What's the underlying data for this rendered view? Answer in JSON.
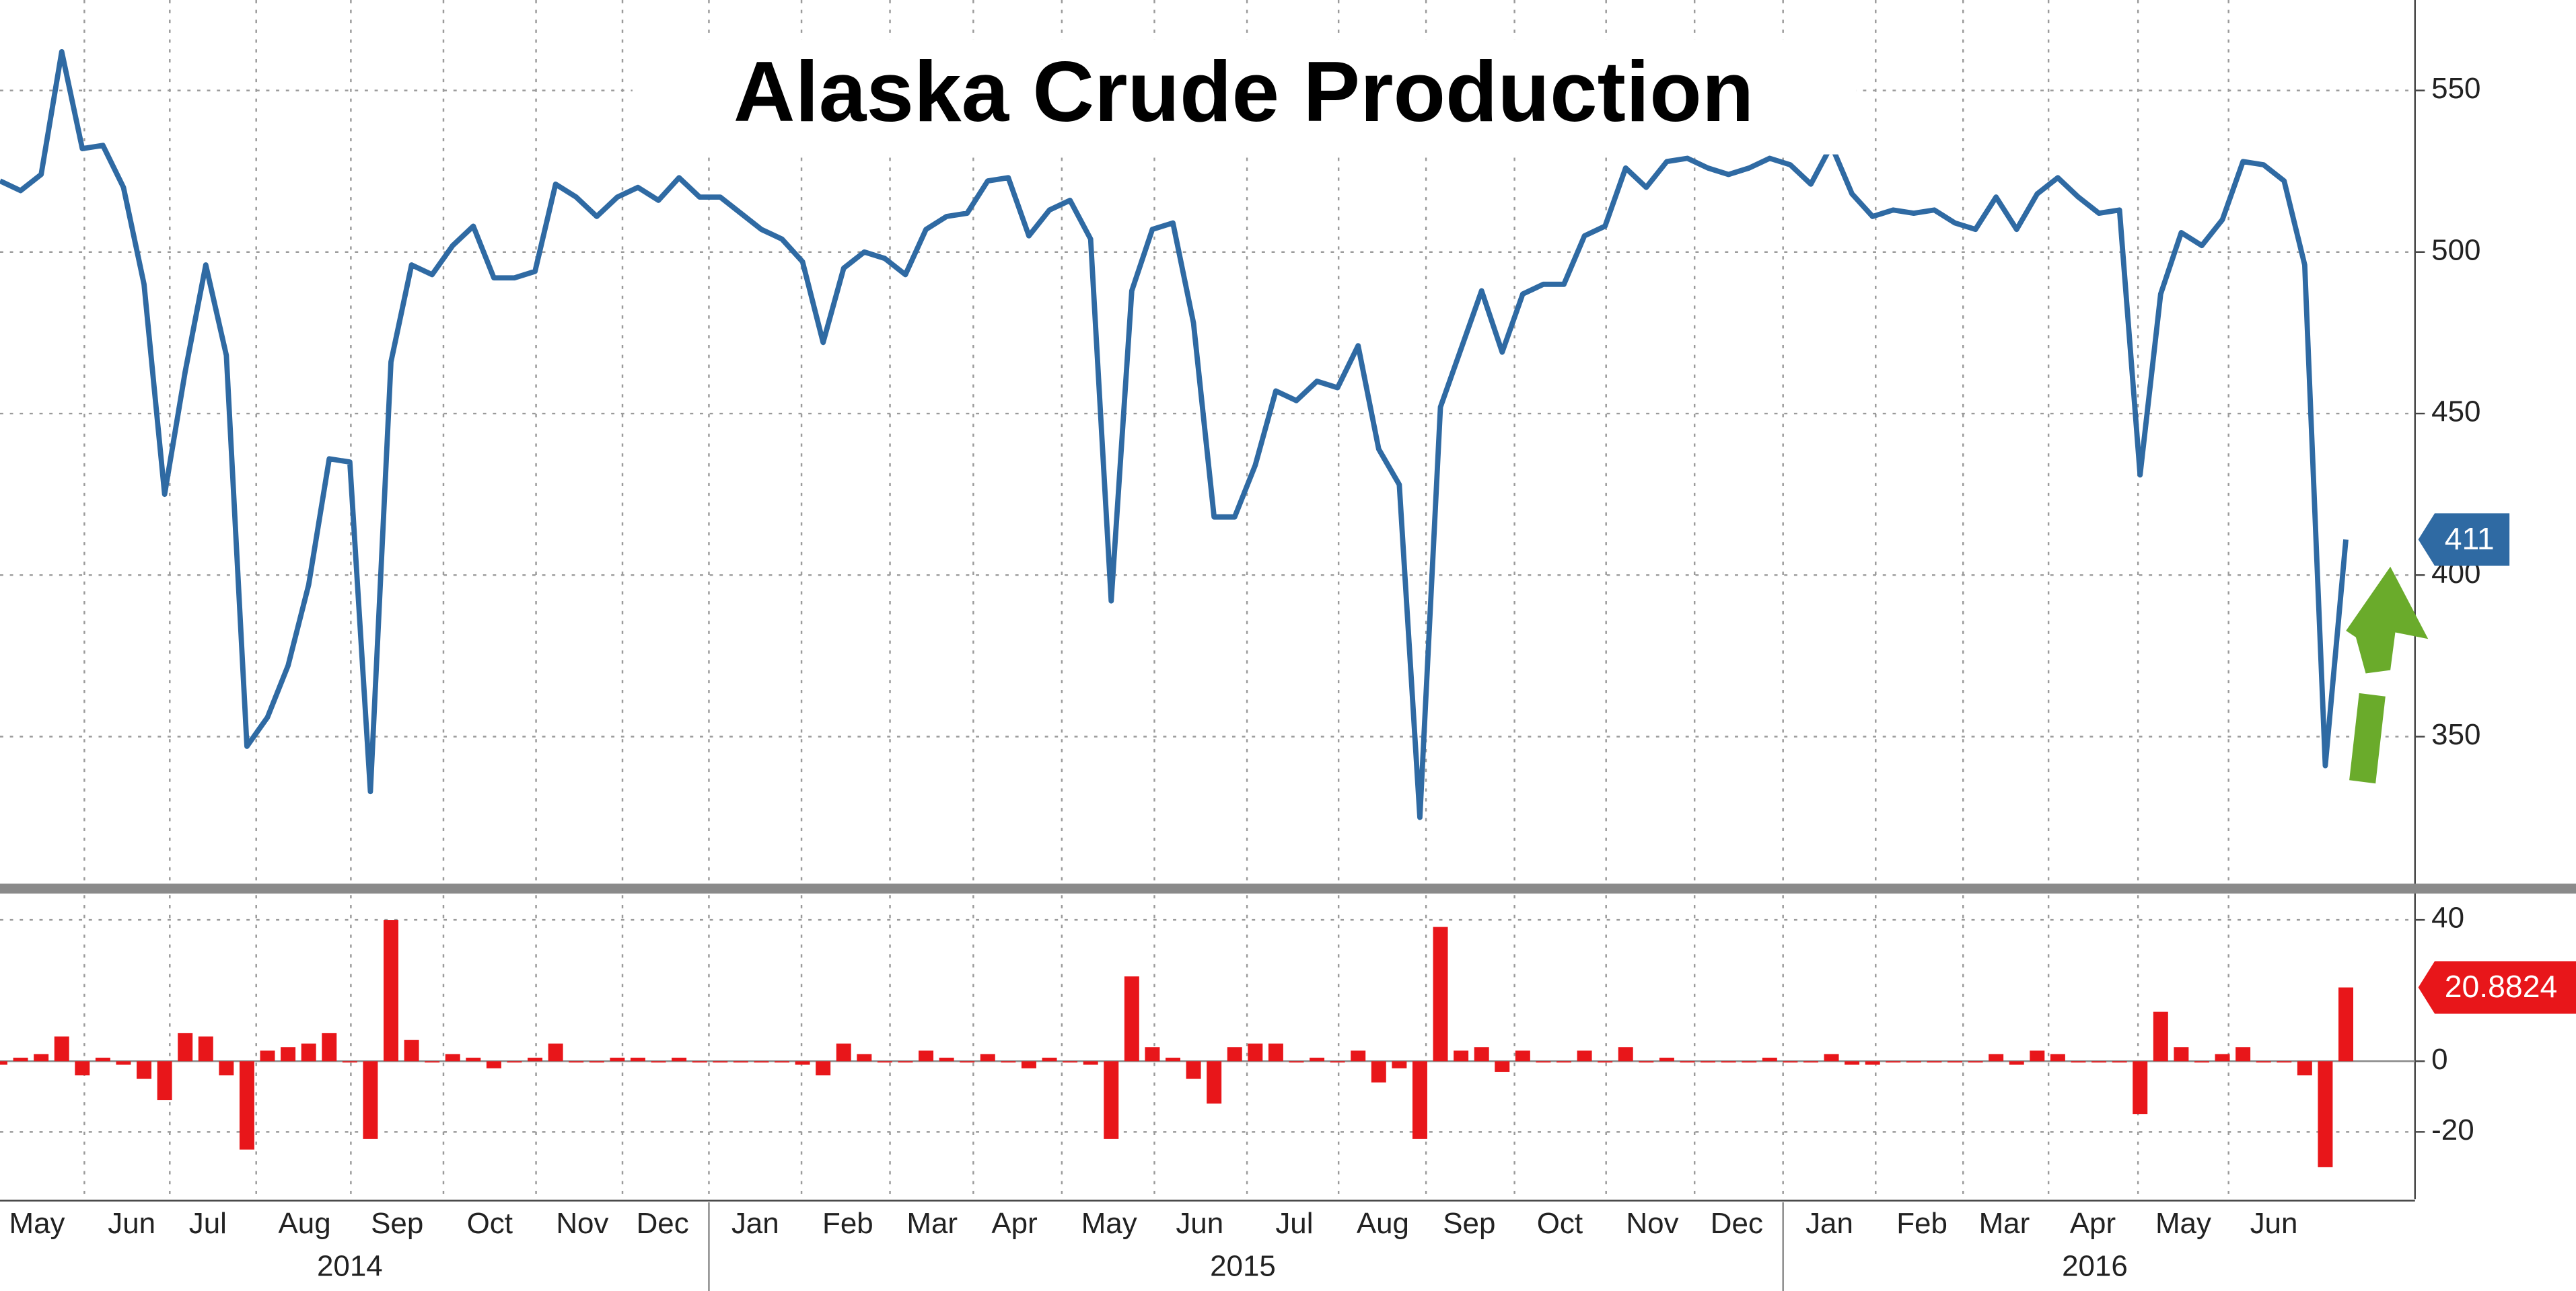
{
  "chart_data": [
    {
      "type": "line",
      "title": "Alaska Crude Production",
      "series": [
        {
          "color": "#2f6aa3",
          "values": [
            522,
            519,
            524,
            562,
            532,
            533,
            520,
            490,
            425,
            463,
            496,
            468,
            347,
            356,
            372,
            397,
            436,
            435,
            333,
            466,
            496,
            493,
            502,
            508,
            492,
            492,
            494,
            521,
            517,
            511,
            517,
            520,
            516,
            523,
            517,
            517,
            512,
            507,
            504,
            497,
            472,
            495,
            500,
            498,
            493,
            507,
            511,
            512,
            522,
            523,
            505,
            513,
            516,
            504,
            392,
            488,
            507,
            509,
            478,
            418,
            418,
            434,
            457,
            454,
            460,
            458,
            471,
            439,
            428,
            325,
            452,
            470,
            488,
            469,
            487,
            490,
            490,
            505,
            508,
            526,
            520,
            528,
            529,
            526,
            524,
            526,
            529,
            527,
            521,
            533,
            518,
            511,
            513,
            512,
            513,
            509,
            507,
            517,
            507,
            518,
            523,
            517,
            512,
            513,
            431,
            487,
            506,
            502,
            510,
            528,
            527,
            522,
            496,
            341,
            411
          ]
        }
      ],
      "last_value_label": 411,
      "ylim": [
        305,
        578
      ],
      "yticks": [
        350,
        400,
        450,
        500,
        550
      ],
      "grid": true
    },
    {
      "type": "bar",
      "series": [
        {
          "color": "#e8161a",
          "values": [
            -1,
            1,
            2,
            7,
            -4,
            1,
            -1,
            -5,
            -11,
            8,
            7,
            -4,
            -25,
            3,
            4,
            5,
            8,
            0,
            -22,
            40,
            6,
            0,
            2,
            1,
            -2,
            0,
            1,
            5,
            0,
            0,
            1,
            1,
            0,
            1,
            0,
            0,
            0,
            0,
            0,
            -1,
            -4,
            5,
            2,
            0,
            0,
            3,
            1,
            0,
            2,
            0,
            -2,
            1,
            0,
            -1,
            -22,
            24,
            4,
            1,
            -5,
            -12,
            4,
            5,
            5,
            0,
            1,
            0,
            3,
            -6,
            -2,
            -22,
            38,
            3,
            4,
            -3,
            3,
            0,
            0,
            3,
            0,
            4,
            0,
            1,
            0,
            0,
            0,
            0,
            1,
            0,
            0,
            2,
            -1,
            -1,
            0,
            0,
            0,
            0,
            0,
            2,
            -1,
            3,
            2,
            0,
            0,
            0,
            -15,
            14,
            4,
            0,
            2,
            4,
            0,
            0,
            -4,
            -30,
            20.8824
          ]
        }
      ],
      "last_value_label": 20.8824,
      "ylim": [
        -39,
        47
      ],
      "yticks": [
        -20,
        0,
        40
      ],
      "grid": true,
      "xlim": [
        0,
        117.2
      ],
      "xticks": [
        {
          "value": 1.8,
          "label": "May"
        },
        {
          "value": 6.4,
          "label": "Jun"
        },
        {
          "value": 10.1,
          "label": "Jul"
        },
        {
          "value": 14.8,
          "label": "Aug"
        },
        {
          "value": 19.3,
          "label": "Sep"
        },
        {
          "value": 23.8,
          "label": "Oct"
        },
        {
          "value": 28.3,
          "label": "Nov"
        },
        {
          "value": 32.2,
          "label": "Dec"
        },
        {
          "value": 36.7,
          "label": "Jan"
        },
        {
          "value": 41.2,
          "label": "Feb"
        },
        {
          "value": 45.3,
          "label": "Mar"
        },
        {
          "value": 49.3,
          "label": "Apr"
        },
        {
          "value": 53.9,
          "label": "May"
        },
        {
          "value": 58.3,
          "label": "Jun"
        },
        {
          "value": 62.9,
          "label": "Jul"
        },
        {
          "value": 67.2,
          "label": "Aug"
        },
        {
          "value": 71.4,
          "label": "Sep"
        },
        {
          "value": 75.8,
          "label": "Oct"
        },
        {
          "value": 80.3,
          "label": "Nov"
        },
        {
          "value": 84.4,
          "label": "Dec"
        },
        {
          "value": 88.9,
          "label": "Jan"
        },
        {
          "value": 93.4,
          "label": "Feb"
        },
        {
          "value": 97.4,
          "label": "Mar"
        },
        {
          "value": 101.7,
          "label": "Apr"
        },
        {
          "value": 106.1,
          "label": "May"
        },
        {
          "value": 110.5,
          "label": "Jun"
        }
      ],
      "year_ticks": [
        {
          "value": 17,
          "label": "2014"
        },
        {
          "value": 60.4,
          "label": "2015"
        },
        {
          "value": 101.8,
          "label": "2016"
        }
      ]
    }
  ]
}
